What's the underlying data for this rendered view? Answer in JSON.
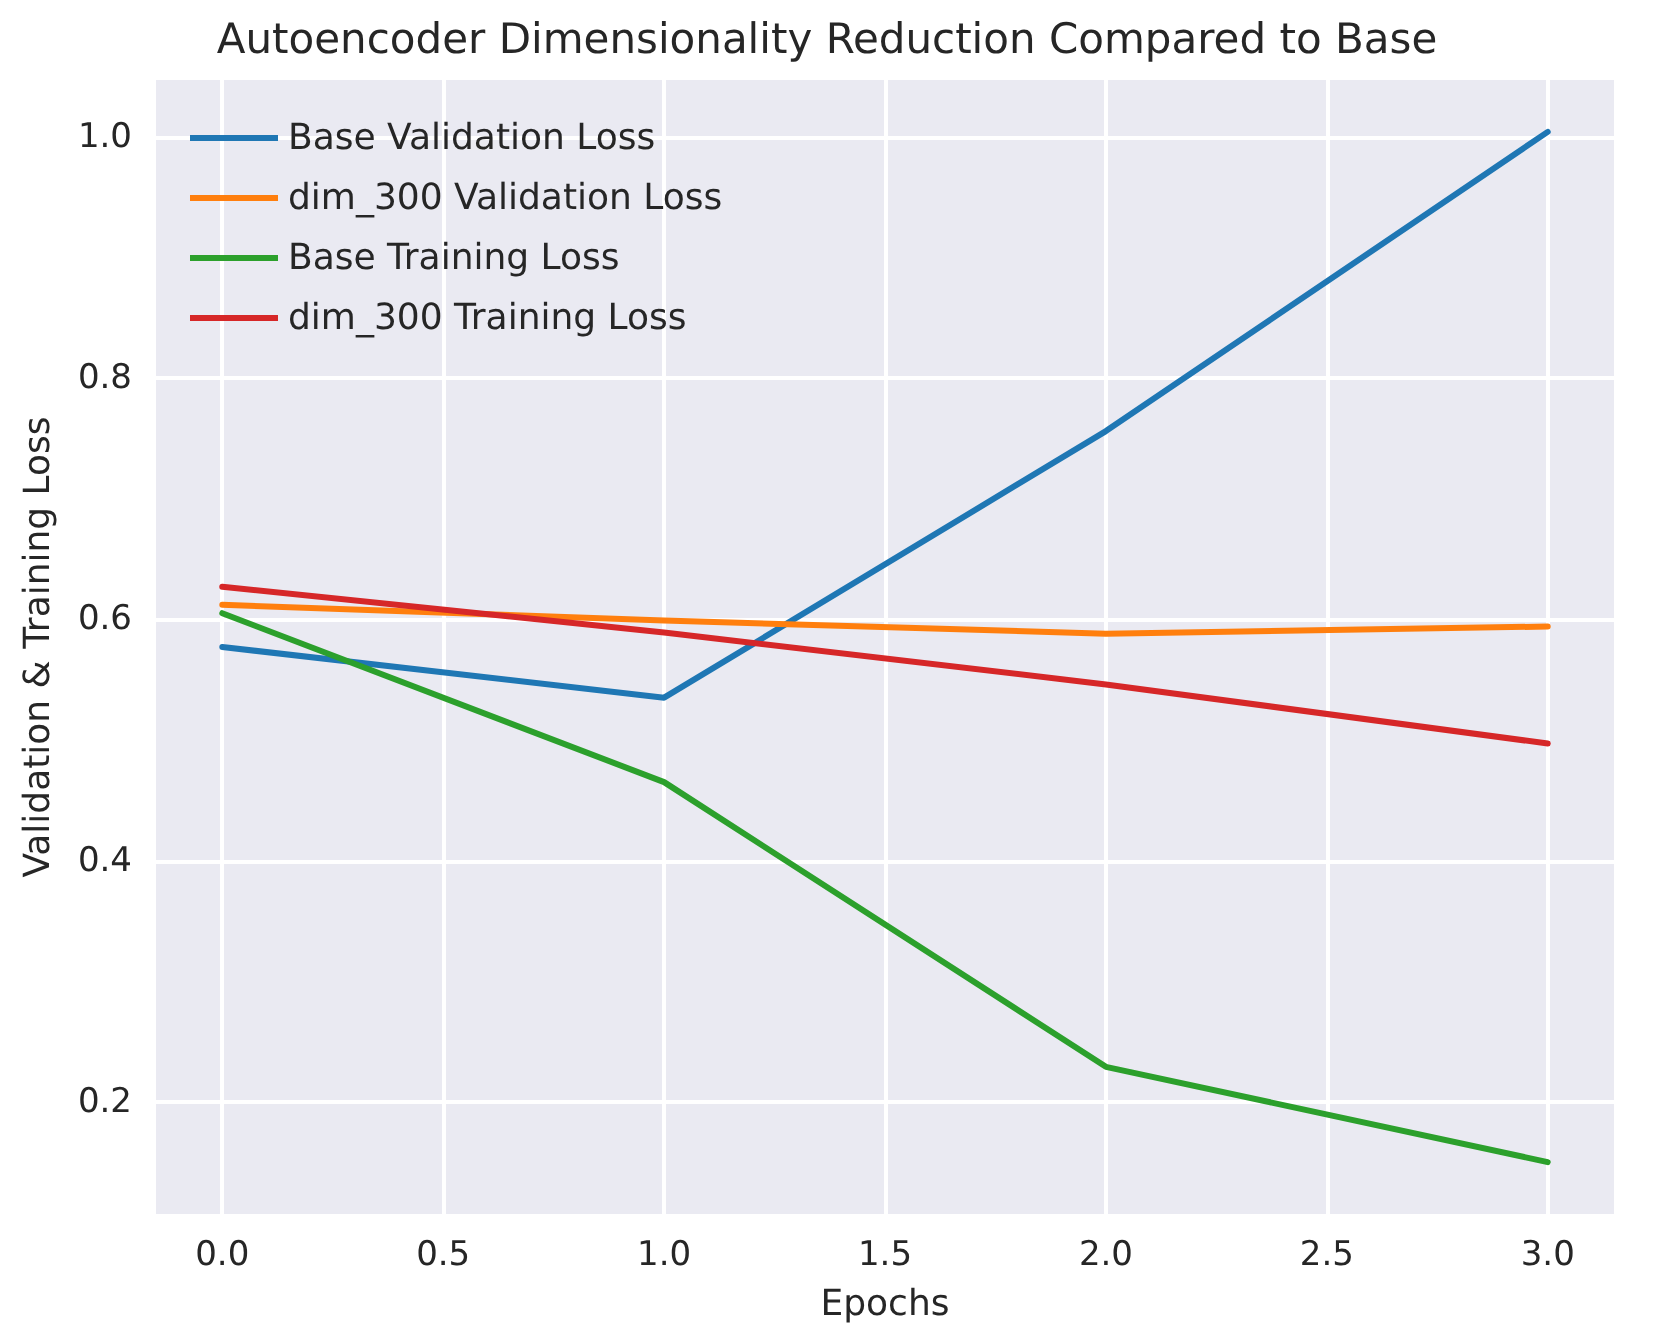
{
  "chart_data": {
    "type": "line",
    "title": "Autoencoder Dimensionality Reduction Compared to Base",
    "xlabel": "Epochs",
    "ylabel": "Validation & Training Loss",
    "x": [
      0,
      1,
      2,
      3
    ],
    "series": [
      {
        "name": "Base Validation Loss",
        "color": "#1f77b4",
        "values": [
          0.577,
          0.535,
          0.756,
          1.004
        ]
      },
      {
        "name": "dim_300 Validation Loss",
        "color": "#ff7f0e",
        "values": [
          0.612,
          0.599,
          0.588,
          0.594
        ]
      },
      {
        "name": "Base Training Loss",
        "color": "#2ca02c",
        "values": [
          0.605,
          0.465,
          0.229,
          0.15
        ]
      },
      {
        "name": "dim_300 Training Loss",
        "color": "#d62728",
        "values": [
          0.627,
          0.589,
          0.546,
          0.497
        ]
      }
    ],
    "xlim": [
      -0.15,
      3.15
    ],
    "xticks": [
      {
        "value": 0,
        "label": "0.0"
      },
      0.5,
      {
        "value": 1,
        "label": "1.0"
      },
      1.5,
      {
        "value": 2,
        "label": "2.0"
      },
      2.5,
      {
        "value": 3,
        "label": "3.0"
      }
    ],
    "ylim": [
      0.107,
      1.047
    ],
    "yticks": [
      0.2,
      0.4,
      0.6,
      0.8,
      {
        "value": 1,
        "label": "1.0"
      }
    ],
    "grid": true,
    "legend": "top left",
    "marker": "none",
    "line_style": "solid"
  }
}
